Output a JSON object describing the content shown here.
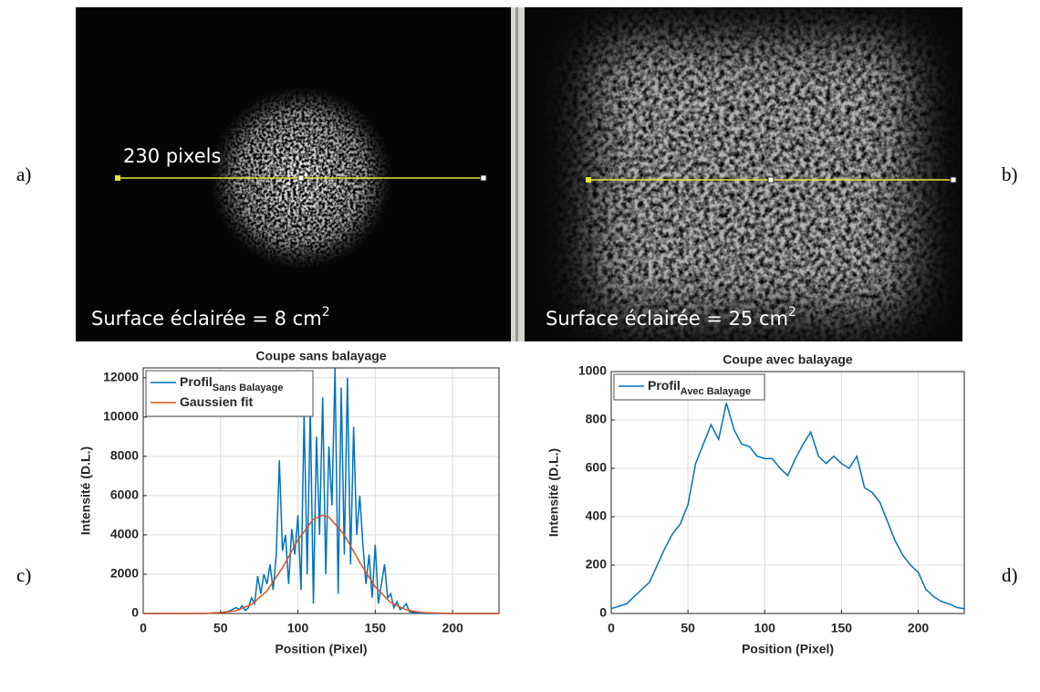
{
  "panel_labels": [
    "a)",
    "b)",
    "c)",
    "d)"
  ],
  "images": [
    {
      "line_label": "230 pixels",
      "caption": "Surface éclairée = 8 cm",
      "caption_sup": "2"
    },
    {
      "caption": "Surface éclairée = 25 cm",
      "caption_sup": "2"
    }
  ],
  "chart_data": [
    {
      "type": "line",
      "title": "Coupe sans balayage",
      "xlabel": "Position (Pixel)",
      "ylabel": "Intensité (D.L.)",
      "xlim": [
        0,
        230
      ],
      "ylim": [
        0,
        12500
      ],
      "xticks": [
        0,
        50,
        100,
        150,
        200
      ],
      "yticks": [
        0,
        2000,
        4000,
        6000,
        8000,
        10000,
        12000
      ],
      "grid": true,
      "legend": "upper left",
      "series": [
        {
          "name": "Profil",
          "name_subscript": "Sans Balayage",
          "color": "#0072bd",
          "x": [
            0,
            20,
            40,
            50,
            55,
            60,
            62,
            64,
            66,
            68,
            70,
            72,
            74,
            76,
            78,
            80,
            82,
            84,
            86,
            88,
            90,
            92,
            94,
            96,
            98,
            100,
            102,
            104,
            106,
            108,
            110,
            112,
            114,
            116,
            118,
            120,
            122,
            124,
            126,
            128,
            130,
            132,
            134,
            136,
            138,
            140,
            142,
            144,
            146,
            148,
            150,
            152,
            154,
            156,
            158,
            160,
            162,
            164,
            166,
            168,
            170,
            172,
            175,
            180,
            200,
            230
          ],
          "values": [
            0,
            0,
            0,
            50,
            100,
            300,
            200,
            400,
            150,
            300,
            800,
            500,
            1900,
            1000,
            2000,
            1500,
            2500,
            1200,
            3000,
            7800,
            3200,
            4000,
            1500,
            4300,
            3000,
            5000,
            1200,
            10200,
            2000,
            10500,
            500,
            9000,
            4000,
            11000,
            2000,
            8500,
            5500,
            12500,
            1000,
            11500,
            3000,
            12000,
            2500,
            9500,
            4000,
            6000,
            3500,
            1500,
            3000,
            800,
            3500,
            500,
            1500,
            2500,
            800,
            1000,
            300,
            600,
            200,
            300,
            500,
            100,
            50,
            0,
            0,
            0
          ]
        },
        {
          "name": "Gaussien fit",
          "color": "#d95319",
          "x": [
            0,
            40,
            50,
            60,
            70,
            80,
            90,
            100,
            110,
            116,
            120,
            130,
            140,
            150,
            160,
            170,
            180,
            200,
            230
          ],
          "values": [
            0,
            7,
            36,
            142,
            454,
            1150,
            2325,
            3740,
            4800,
            5000,
            4910,
            4000,
            2600,
            1350,
            555,
            185,
            48,
            0,
            0
          ]
        }
      ]
    },
    {
      "type": "line",
      "title": "Coupe avec balayage",
      "xlabel": "Position (Pixel)",
      "ylabel": "Intensité (D.L.)",
      "xlim": [
        0,
        230
      ],
      "ylim": [
        0,
        1000
      ],
      "xticks": [
        0,
        50,
        100,
        150,
        200
      ],
      "yticks": [
        0,
        200,
        400,
        600,
        800,
        1000
      ],
      "grid": true,
      "legend": "upper left",
      "series": [
        {
          "name": "Profil",
          "name_subscript": "Avec Balayage",
          "color": "#0072bd",
          "x": [
            0,
            5,
            10,
            15,
            20,
            25,
            30,
            35,
            40,
            45,
            50,
            55,
            60,
            65,
            70,
            75,
            80,
            85,
            90,
            95,
            100,
            105,
            110,
            115,
            120,
            125,
            130,
            135,
            140,
            145,
            150,
            155,
            160,
            165,
            170,
            175,
            180,
            185,
            190,
            195,
            200,
            205,
            210,
            215,
            220,
            225,
            230
          ],
          "values": [
            20,
            30,
            40,
            70,
            100,
            130,
            200,
            270,
            330,
            370,
            450,
            620,
            700,
            780,
            720,
            870,
            760,
            700,
            690,
            650,
            640,
            640,
            600,
            570,
            640,
            700,
            750,
            650,
            620,
            650,
            620,
            600,
            650,
            520,
            500,
            460,
            380,
            300,
            240,
            200,
            170,
            100,
            70,
            50,
            40,
            25,
            20
          ]
        }
      ]
    }
  ]
}
